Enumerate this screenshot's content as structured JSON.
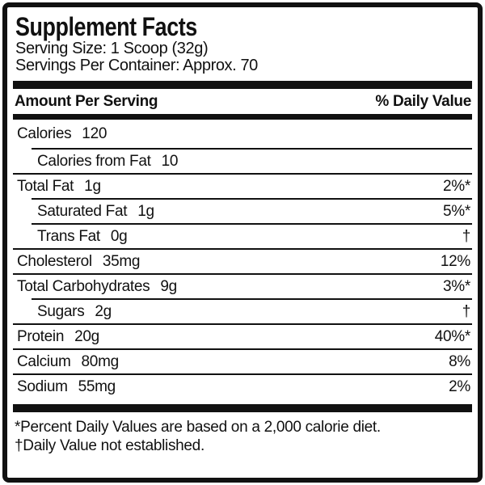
{
  "label": {
    "title": "Supplement Facts",
    "serving_size": "Serving Size: 1 Scoop (32g)",
    "servings_per_container": "Servings Per Container: Approx. 70",
    "columns": {
      "amount_header": "Amount Per Serving",
      "daily_value_header": "% Daily Value"
    },
    "rows": [
      {
        "name": "Calories",
        "amount": "120",
        "daily_value": "",
        "indent": false
      },
      {
        "name": "Calories from Fat",
        "amount": "10",
        "daily_value": "",
        "indent": true
      },
      {
        "name": "Total Fat",
        "amount": "1g",
        "daily_value": "2%*",
        "indent": false
      },
      {
        "name": "Saturated Fat",
        "amount": "1g",
        "daily_value": "5%*",
        "indent": true
      },
      {
        "name": "Trans Fat",
        "amount": "0g",
        "daily_value": "†",
        "indent": true
      },
      {
        "name": "Cholesterol",
        "amount": "35mg",
        "daily_value": "12%",
        "indent": false
      },
      {
        "name": "Total Carbohydrates",
        "amount": "9g",
        "daily_value": "3%*",
        "indent": false
      },
      {
        "name": "Sugars",
        "amount": "2g",
        "daily_value": "†",
        "indent": true
      },
      {
        "name": "Protein",
        "amount": "20g",
        "daily_value": "40%*",
        "indent": false
      },
      {
        "name": "Calcium",
        "amount": "80mg",
        "daily_value": "8%",
        "indent": false
      },
      {
        "name": "Sodium",
        "amount": "55mg",
        "daily_value": "2%",
        "indent": false
      }
    ],
    "footnotes": [
      "*Percent Daily Values are based on a 2,000 calorie diet.",
      "†Daily Value not established."
    ],
    "colors": {
      "ink": "#111111",
      "background": "#ffffff"
    }
  }
}
